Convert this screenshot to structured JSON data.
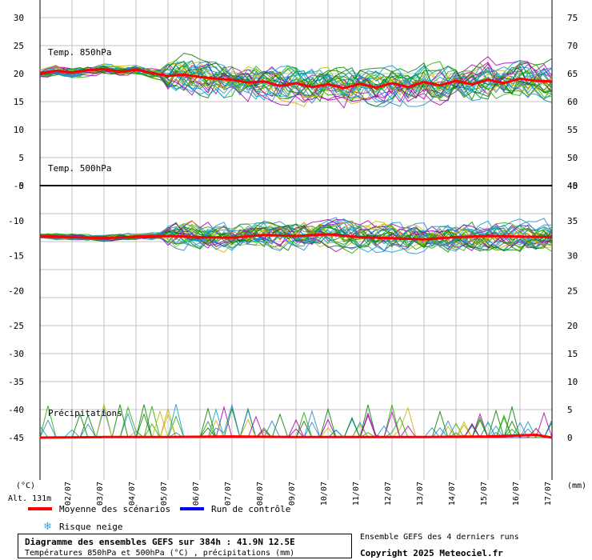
{
  "chart_data": {
    "type": "line",
    "panels": [
      {
        "label": "Temp. 850hPa",
        "unit": "°C",
        "y_left_ticks": [
          30,
          25,
          20,
          15,
          10,
          5,
          0
        ],
        "y_right_ticks": [
          75,
          70,
          65,
          60,
          55,
          50,
          45
        ],
        "ylim": [
          0,
          30
        ],
        "series": [
          {
            "name": "Moyenne des scénarios",
            "x": [
              0,
              12,
              24,
              36,
              48,
              60,
              72,
              84,
              96,
              108,
              120,
              132,
              144,
              156,
              168,
              180,
              192,
              204,
              216,
              228,
              240,
              252,
              264,
              276,
              288,
              300,
              312,
              324,
              336,
              348,
              360,
              372,
              384
            ],
            "values": [
              20,
              20.5,
              20.2,
              20.6,
              20.8,
              20.3,
              20.7,
              20.1,
              19.6,
              19.8,
              19.4,
              19.1,
              18.9,
              18.4,
              18.6,
              17.8,
              18.3,
              17.6,
              18.1,
              17.4,
              18.2,
              17.5,
              18.3,
              17.6,
              18.5,
              17.9,
              18.7,
              18.1,
              18.9,
              18.3,
              19.1,
              18.7,
              18.6
            ]
          }
        ]
      },
      {
        "label": "Temp. 500hPa",
        "unit": "°C",
        "y_left_ticks": [
          -5,
          -10,
          -15,
          -20,
          -25
        ],
        "y_right_ticks": [
          40,
          35,
          30,
          25,
          20
        ],
        "ylim": [
          -25,
          0
        ],
        "series": [
          {
            "name": "Moyenne des scénarios",
            "x": [
              0,
              24,
              48,
              72,
              96,
              120,
              144,
              168,
              192,
              216,
              240,
              264,
              288,
              312,
              336,
              360,
              384
            ],
            "values": [
              -9,
              -9.2,
              -9.4,
              -9.1,
              -9,
              -9.2,
              -9.3,
              -8.8,
              -9,
              -8.7,
              -9.2,
              -9.4,
              -9.6,
              -9.2,
              -9,
              -9.1,
              -9.2
            ]
          }
        ]
      },
      {
        "label": "Précipitations",
        "unit": "mm",
        "y_left_ticks": [
          -30,
          -35,
          -40,
          -45
        ],
        "y_right_ticks": [
          15,
          10,
          5,
          0
        ],
        "ylim": [
          0,
          15
        ],
        "series": [
          {
            "name": "Moyenne des scénarios",
            "x": [
              0,
              48,
              96,
              144,
              192,
              240,
              288,
              336,
              372,
              384
            ],
            "values": [
              0,
              0.1,
              0.1,
              0.2,
              0.1,
              0.1,
              0.1,
              0.2,
              0.5,
              0
            ]
          }
        ]
      }
    ],
    "x_tick_labels": [
      "02/07",
      "03/07",
      "04/07",
      "05/07",
      "06/07",
      "07/07",
      "08/07",
      "09/07",
      "10/07",
      "11/07",
      "12/07",
      "13/07",
      "14/07",
      "15/07",
      "16/07",
      "17/07"
    ],
    "x_range_hours": [
      0,
      384
    ],
    "left_unit": "(°C)",
    "right_unit": "(mm)",
    "altitude": "Alt. 131m",
    "legend": {
      "mean": "Moyenne des scénarios",
      "control": "Run de contrôle",
      "snow": "Risque neige"
    },
    "colors": {
      "mean": "#ff0000",
      "control": "#0000ff",
      "members": [
        "#22aa00",
        "#aa00aa",
        "#c8b400",
        "#00a0c8",
        "#008000",
        "#2288cc"
      ],
      "grid": "#c0c0c0",
      "snow": "#40a0e0"
    },
    "grid": true
  },
  "footer": {
    "title": "Diagramme des ensembles GEFS sur 384h : 41.9N 12.5E",
    "subtitle": "Températures 850hPa et 500hPa (°C) , précipitations (mm)",
    "ensemble_note": "Ensemble GEFS des 4 derniers runs",
    "copyright": "Copyright 2025 Meteociel.fr"
  }
}
